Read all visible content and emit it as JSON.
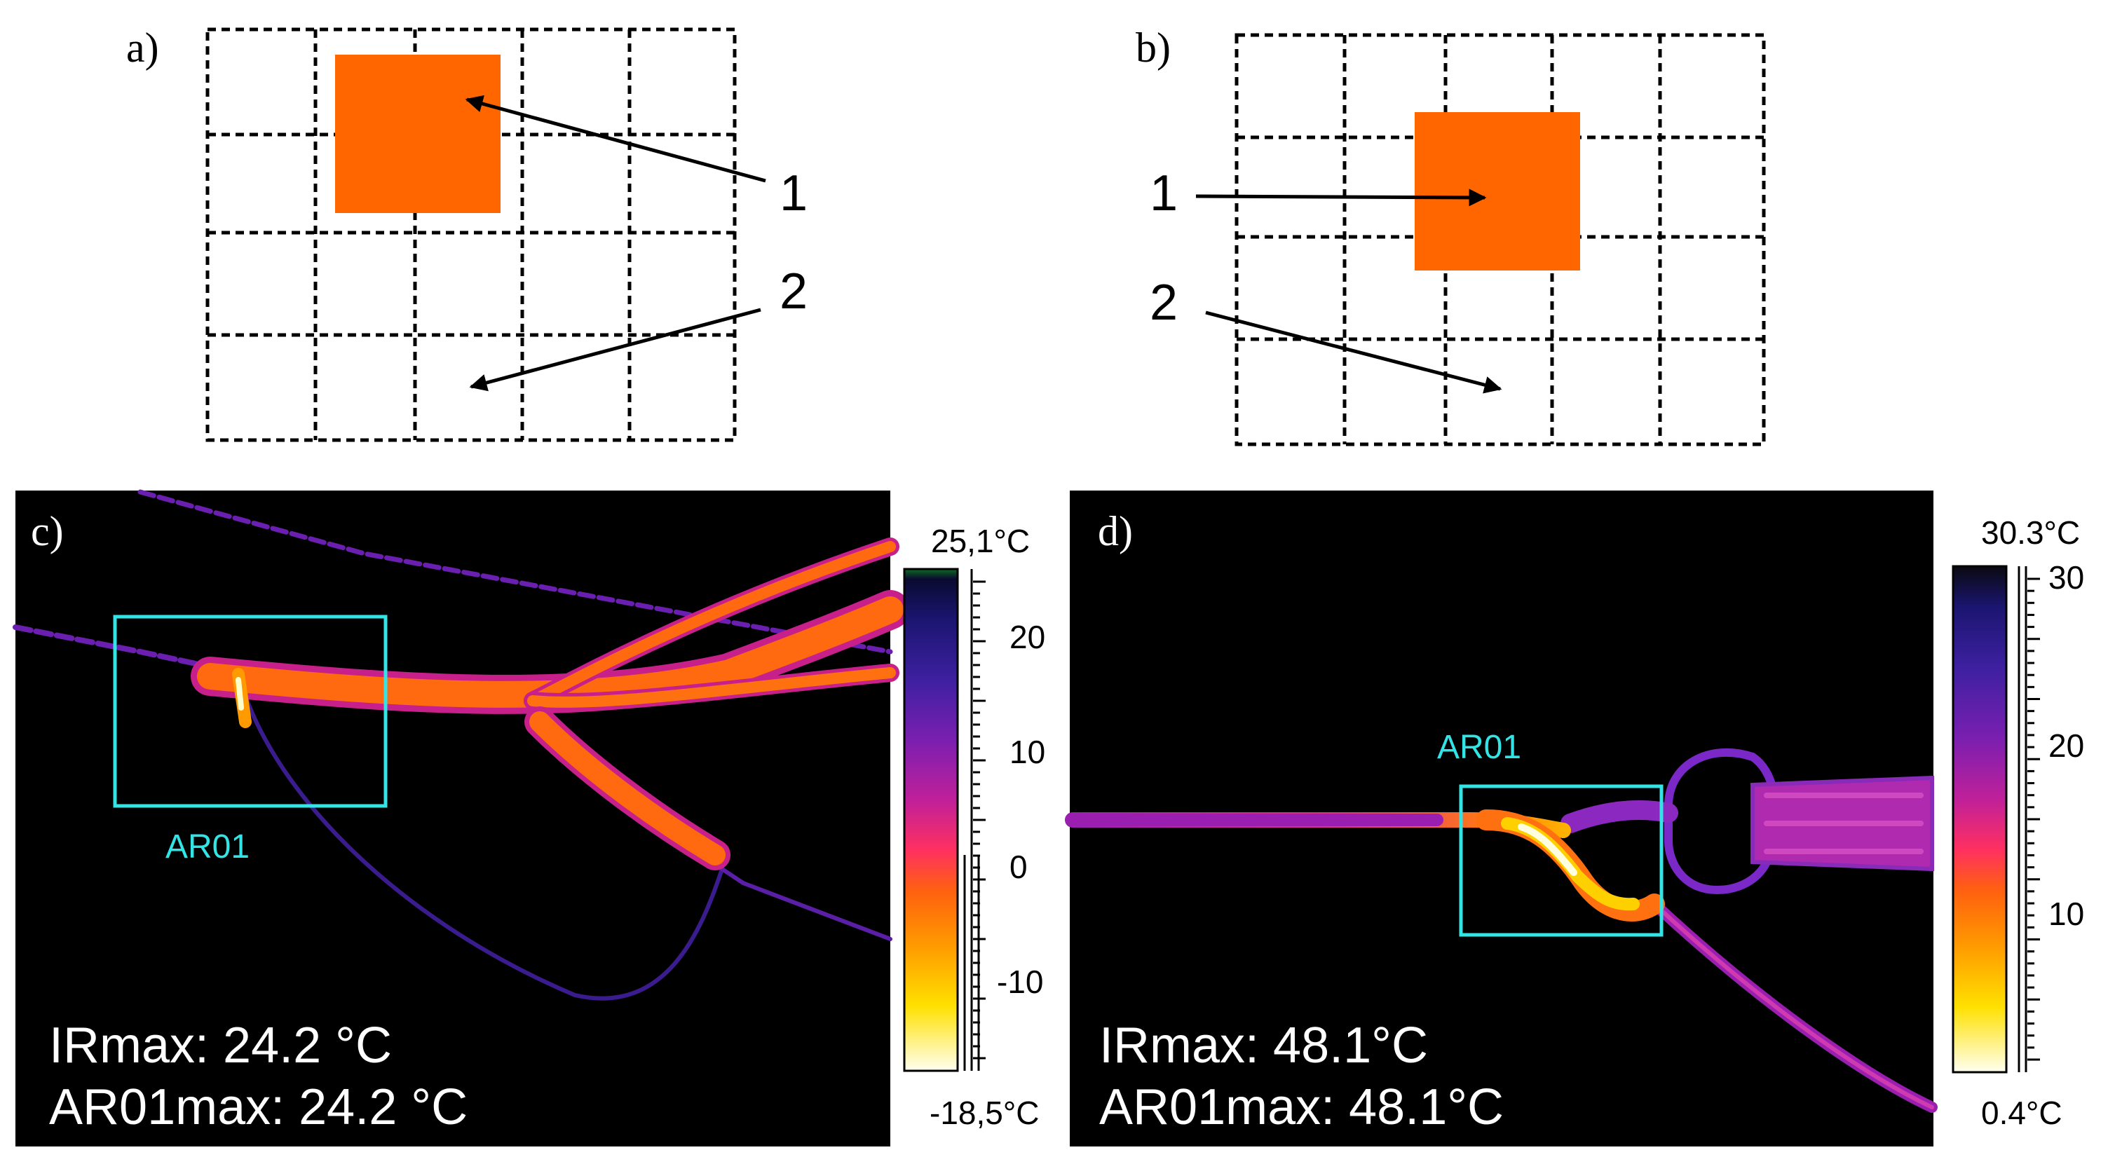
{
  "panels": {
    "a": {
      "label": "a)",
      "hot_spot_color": "#ff6600",
      "callouts": {
        "one": "1",
        "two": "2"
      }
    },
    "b": {
      "label": "b)",
      "hot_spot_color": "#ff6600",
      "callouts": {
        "one": "1",
        "two": "2"
      }
    },
    "c": {
      "label": "c)",
      "roi_label": "AR01",
      "ir_max": "IRmax: 24.2 °C",
      "ar01_max": "AR01max: 24.2 °C",
      "scale": {
        "max_label": "25,1°C",
        "min_label": "-18,5°C",
        "ticks": [
          "20",
          "10",
          "0",
          "-10"
        ]
      }
    },
    "d": {
      "label": "d)",
      "roi_label": "AR01",
      "ir_max": "IRmax: 48.1°C",
      "ar01_max": "AR01max: 48.1°C",
      "scale": {
        "max_label": "30.3°C",
        "min_label": "0.4°C",
        "ticks": [
          "30",
          "20",
          "10"
        ]
      }
    }
  },
  "colors": {
    "roi": "#33e4e6",
    "hot_spot": "#ff6600",
    "thermal_background": "#000000"
  }
}
